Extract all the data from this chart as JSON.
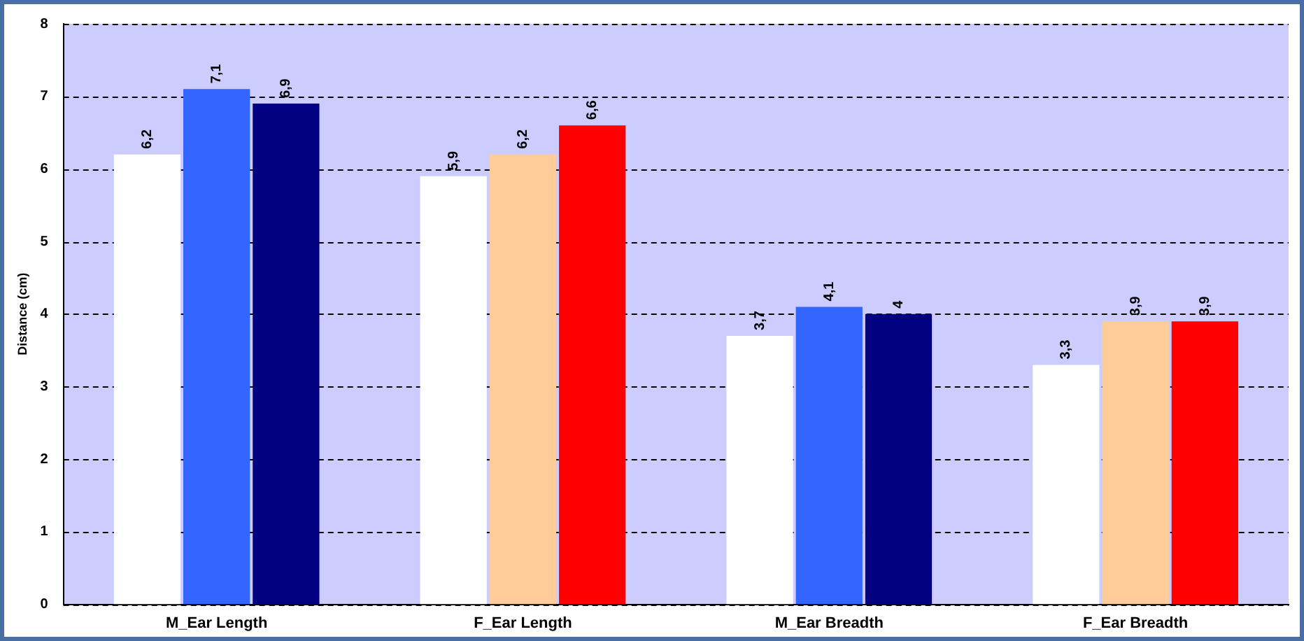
{
  "chart_data": {
    "type": "bar",
    "ylabel": "Distance (cm)",
    "categories": [
      "M_Ear Length",
      "F_Ear Length",
      "M_Ear Breadth",
      "F_Ear Breadth"
    ],
    "series": [
      {
        "colors": [
          "#ffffff",
          "#ffffff",
          "#ffffff",
          "#ffffff"
        ],
        "values": [
          6.2,
          5.9,
          3.7,
          3.3
        ],
        "value_labels": [
          "6,2",
          "5,9",
          "3,7",
          "3,3"
        ]
      },
      {
        "colors": [
          "#3366ff",
          "#ffcc99",
          "#3366ff",
          "#ffcc99"
        ],
        "values": [
          7.1,
          6.2,
          4.1,
          3.9
        ],
        "value_labels": [
          "7,1",
          "6,2",
          "4,1",
          "3,9"
        ]
      },
      {
        "colors": [
          "#000080",
          "#ff0000",
          "#000080",
          "#ff0000"
        ],
        "values": [
          6.9,
          6.6,
          4,
          3.9
        ],
        "value_labels": [
          "6,9",
          "6,6",
          "4",
          "3,9"
        ]
      }
    ],
    "ylim": [
      0,
      8
    ],
    "yticks": [
      0,
      1,
      2,
      3,
      4,
      5,
      6,
      7,
      8
    ],
    "grid": "y",
    "legend": false
  }
}
